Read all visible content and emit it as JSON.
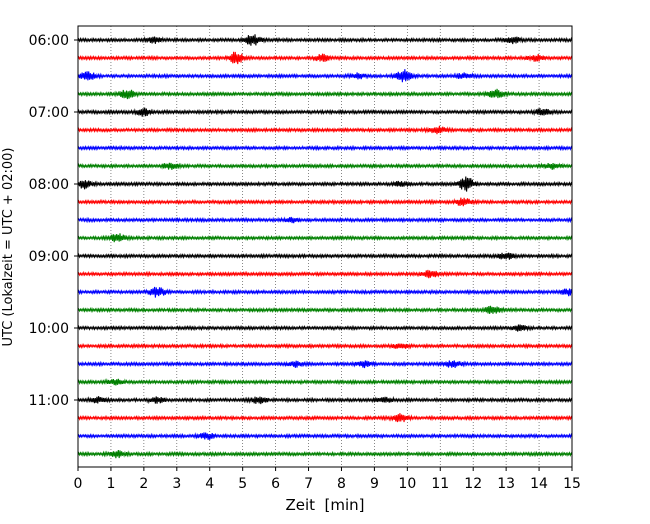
{
  "chart_data": {
    "type": "line",
    "title": "",
    "xlabel": "Zeit  [min]",
    "ylabel": "UTC (Lokalzeit = UTC + 02:00)",
    "xlim": [
      0,
      15
    ],
    "x_ticks": [
      0,
      1,
      2,
      3,
      4,
      5,
      6,
      7,
      8,
      9,
      10,
      11,
      12,
      13,
      14,
      15
    ],
    "y_tick_labels": [
      "06:00",
      "07:00",
      "08:00",
      "09:00",
      "10:00",
      "11:00"
    ],
    "grid": "vertical dotted",
    "colors": [
      "#000000",
      "#ff0000",
      "#0000ff",
      "#008000"
    ],
    "traces": [
      {
        "start": "06:00",
        "color": "#000000",
        "events": [
          [
            2.3,
            0.5
          ],
          [
            5.3,
            1.0
          ],
          [
            13.2,
            0.6
          ]
        ]
      },
      {
        "start": "06:15",
        "color": "#ff0000",
        "events": [
          [
            4.8,
            1.2
          ],
          [
            7.4,
            0.6
          ],
          [
            13.9,
            0.6
          ]
        ]
      },
      {
        "start": "06:30",
        "color": "#0000ff",
        "events": [
          [
            0.3,
            0.8
          ],
          [
            8.5,
            0.5
          ],
          [
            9.9,
            1.1
          ],
          [
            11.7,
            0.5
          ]
        ]
      },
      {
        "start": "06:45",
        "color": "#008000",
        "events": [
          [
            1.5,
            0.8
          ],
          [
            12.7,
            0.8
          ]
        ]
      },
      {
        "start": "07:00",
        "color": "#000000",
        "events": [
          [
            2.0,
            0.7
          ],
          [
            14.1,
            0.6
          ]
        ]
      },
      {
        "start": "07:15",
        "color": "#ff0000",
        "events": [
          [
            10.9,
            0.7
          ]
        ]
      },
      {
        "start": "07:30",
        "color": "#0000ff",
        "events": []
      },
      {
        "start": "07:45",
        "color": "#008000",
        "events": [
          [
            2.8,
            0.6
          ],
          [
            14.4,
            0.5
          ]
        ]
      },
      {
        "start": "08:00",
        "color": "#000000",
        "events": [
          [
            0.2,
            0.8
          ],
          [
            9.8,
            0.4
          ],
          [
            11.8,
            1.3
          ]
        ]
      },
      {
        "start": "08:15",
        "color": "#ff0000",
        "events": [
          [
            11.7,
            0.7
          ]
        ]
      },
      {
        "start": "08:30",
        "color": "#0000ff",
        "events": [
          [
            6.5,
            0.4
          ]
        ]
      },
      {
        "start": "08:45",
        "color": "#008000",
        "events": [
          [
            1.2,
            0.8
          ]
        ]
      },
      {
        "start": "09:00",
        "color": "#000000",
        "events": [
          [
            13.0,
            0.6
          ]
        ]
      },
      {
        "start": "09:15",
        "color": "#ff0000",
        "events": [
          [
            10.7,
            0.6
          ]
        ]
      },
      {
        "start": "09:30",
        "color": "#0000ff",
        "events": [
          [
            2.4,
            1.0
          ],
          [
            14.9,
            0.6
          ]
        ]
      },
      {
        "start": "09:45",
        "color": "#008000",
        "events": [
          [
            12.6,
            0.7
          ]
        ]
      },
      {
        "start": "10:00",
        "color": "#000000",
        "events": [
          [
            13.4,
            0.5
          ]
        ]
      },
      {
        "start": "10:15",
        "color": "#ff0000",
        "events": [
          [
            9.8,
            0.5
          ]
        ]
      },
      {
        "start": "10:30",
        "color": "#0000ff",
        "events": [
          [
            6.6,
            0.5
          ],
          [
            8.7,
            0.6
          ],
          [
            11.4,
            0.7
          ]
        ]
      },
      {
        "start": "10:45",
        "color": "#008000",
        "events": [
          [
            1.1,
            0.5
          ]
        ]
      },
      {
        "start": "11:00",
        "color": "#000000",
        "events": [
          [
            0.6,
            0.5
          ],
          [
            2.4,
            0.5
          ],
          [
            5.5,
            0.6
          ],
          [
            9.3,
            0.5
          ]
        ]
      },
      {
        "start": "11:15",
        "color": "#ff0000",
        "events": [
          [
            9.8,
            0.7
          ]
        ]
      },
      {
        "start": "11:30",
        "color": "#0000ff",
        "events": [
          [
            3.9,
            0.6
          ]
        ]
      },
      {
        "start": "11:45",
        "color": "#008000",
        "events": [
          [
            1.2,
            0.6
          ]
        ]
      }
    ]
  }
}
